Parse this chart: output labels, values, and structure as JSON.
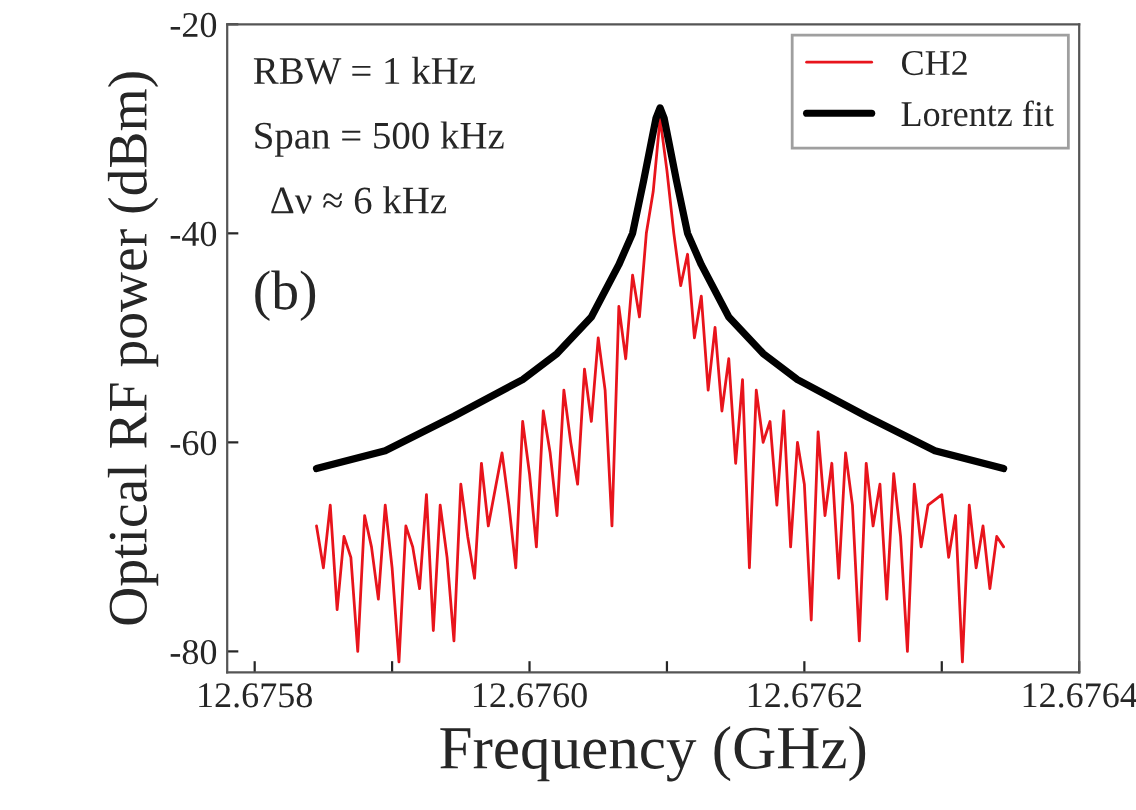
{
  "chart_data": {
    "type": "line",
    "xlabel": "Frequency (GHz)",
    "ylabel": "Optical RF power (dBm)",
    "xlim": [
      12.67578,
      12.6764
    ],
    "ylim": [
      -82,
      -20
    ],
    "xticks": [
      {
        "value": 12.6758,
        "label": "12.6758"
      },
      {
        "value": 12.6759,
        "label": null
      },
      {
        "value": 12.676,
        "label": "12.6760"
      },
      {
        "value": 12.6761,
        "label": null
      },
      {
        "value": 12.6762,
        "label": "12.6762"
      },
      {
        "value": 12.6763,
        "label": null
      },
      {
        "value": 12.6764,
        "label": "12.6764"
      }
    ],
    "yticks": [
      -20,
      -40,
      -60,
      -80
    ],
    "grid": false,
    "legend": "top right",
    "line_style": "solid",
    "marker": "none",
    "annotations": [
      "RBW = 1 kHz",
      "Span = 500 kHz",
      "Δν ≈ 6 kHz",
      "(b)"
    ],
    "series": [
      {
        "name": "CH2",
        "color": "#e8141c",
        "x": [
          12.675845,
          12.67585,
          12.675855,
          12.67586,
          12.675865,
          12.67587,
          12.675875,
          12.67588,
          12.675885,
          12.67589,
          12.675895,
          12.6759,
          12.675905,
          12.67591,
          12.675915,
          12.67592,
          12.675925,
          12.67593,
          12.675935,
          12.67594,
          12.675945,
          12.67595,
          12.675955,
          12.67596,
          12.675965,
          12.67597,
          12.675975,
          12.67598,
          12.675985,
          12.67599,
          12.675995,
          12.676,
          12.676005,
          12.67601,
          12.676015,
          12.67602,
          12.676025,
          12.67603,
          12.676035,
          12.67604,
          12.676045,
          12.67605,
          12.676055,
          12.67606,
          12.676065,
          12.67607,
          12.676075,
          12.67608,
          12.676085,
          12.67609,
          12.676095,
          12.6761,
          12.676105,
          12.67611,
          12.676115,
          12.67612,
          12.676125,
          12.67613,
          12.676135,
          12.67614,
          12.676145,
          12.67615,
          12.676155,
          12.67616,
          12.676165,
          12.67617,
          12.676175,
          12.67618,
          12.676185,
          12.67619,
          12.676195,
          12.6762,
          12.676205,
          12.67621,
          12.676215,
          12.67622,
          12.676225,
          12.67623,
          12.676235,
          12.67624,
          12.676245,
          12.67625,
          12.676255,
          12.67626,
          12.676265,
          12.67627,
          12.676275,
          12.67628,
          12.676285,
          12.67629,
          12.676295,
          12.6763,
          12.676305,
          12.67631,
          12.676315,
          12.67632,
          12.676325,
          12.67633,
          12.676335,
          12.67634,
          12.676345
        ],
        "values": [
          -68,
          -72,
          -66,
          -76,
          -69,
          -71,
          -80,
          -67,
          -70,
          -75,
          -66,
          -72,
          -81,
          -68,
          -70,
          -74,
          -65,
          -78,
          -66,
          -71,
          -79,
          -64,
          -69,
          -73,
          -62,
          -68,
          null,
          -61,
          -66,
          -72,
          -58,
          -63,
          -70,
          -57,
          -61,
          -67,
          -55,
          -60,
          -64,
          -53,
          -58,
          -50,
          -55,
          -68,
          -47,
          -52,
          -44,
          -48,
          -40,
          -36,
          -29,
          -34,
          -40,
          -45,
          -42,
          -50,
          -46,
          -55,
          -49,
          -57,
          -52,
          -62,
          -54,
          -72,
          -55,
          -60,
          -58,
          -66,
          -57,
          -70,
          -60,
          -64,
          -77,
          -59,
          -67,
          -62,
          -73,
          -61,
          -66,
          -79,
          -62,
          -68,
          -64,
          -75,
          -63,
          -69,
          -80,
          -64,
          -70,
          -66,
          null,
          -65,
          -71,
          -67,
          -81,
          -66,
          -72,
          -68,
          -74,
          -69,
          -70
        ]
      },
      {
        "name": "Lorentz fit",
        "color": "#000000",
        "x": [
          12.675845,
          12.675895,
          12.675945,
          12.675995,
          12.67602,
          12.676045,
          12.676065,
          12.676075,
          12.676083,
          12.676089,
          12.676092,
          12.676095,
          12.676098,
          12.676101,
          12.676107,
          12.676115,
          12.676125,
          12.676145,
          12.67617,
          12.676195,
          12.676245,
          12.676295,
          12.676345
        ],
        "values": [
          -62.5,
          -60.8,
          -57.5,
          -54,
          -51.5,
          -48,
          -43,
          -40,
          -35,
          -31,
          -29,
          -28,
          -29,
          -31,
          -35,
          -40,
          -43,
          -48,
          -51.5,
          -54,
          -57.5,
          -60.8,
          -62.5
        ]
      }
    ]
  }
}
